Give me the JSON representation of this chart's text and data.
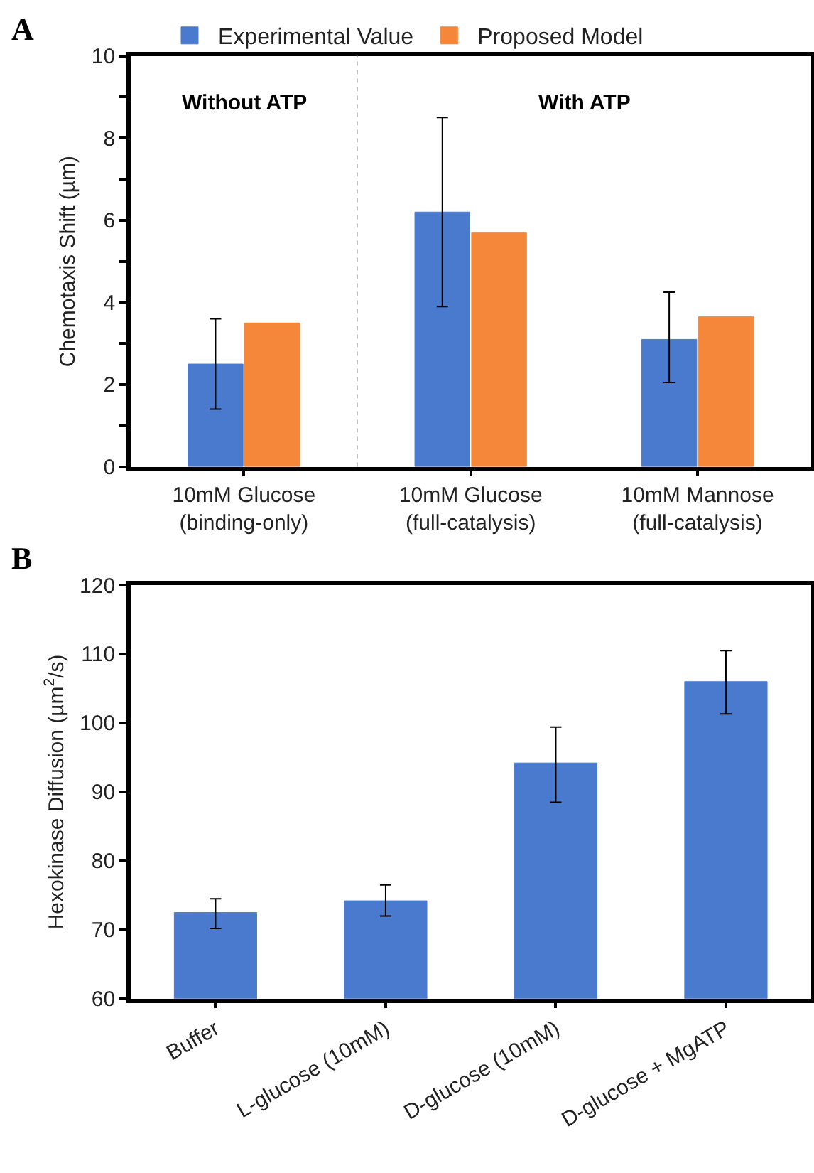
{
  "chart_data": [
    {
      "type": "bar",
      "title": "A",
      "ylabel": "Chemotaxis Shift (µm)",
      "categories": [
        "10mM Glucose (binding-only)",
        "10mM Glucose (full-catalysis)",
        "10mM Mannose (full-catalysis)"
      ],
      "series": [
        {
          "name": "Experimental Value",
          "color": "#4a7acd",
          "values": [
            2.5,
            6.2,
            3.1
          ],
          "errors": [
            [
              1.4,
              3.6
            ],
            [
              3.9,
              8.5
            ],
            [
              2.05,
              4.25
            ]
          ]
        },
        {
          "name": "Proposed Model",
          "color": "#f5873a",
          "values": [
            3.5,
            5.7,
            3.65
          ]
        }
      ],
      "ylim": [
        0,
        10
      ],
      "yticks": [
        0,
        {
          "value": 1,
          "label": null
        },
        2,
        {
          "value": 3,
          "label": null
        },
        4,
        {
          "value": 5,
          "label": null
        },
        6,
        {
          "value": 7,
          "label": null
        },
        8,
        {
          "value": 9,
          "label": null
        },
        10
      ],
      "annotations": [
        "Without ATP",
        "With ATP"
      ],
      "legend": "top"
    },
    {
      "type": "bar",
      "title": "B",
      "ylabel": "Hexokinase Diffusion (µm$^{2}$/s)",
      "categories": [
        "Buffer",
        "L-glucose (10mM)",
        "D-glucose (10mM)",
        "D-glucose + MgATP"
      ],
      "series": [
        {
          "color": "#4a7acd",
          "values": [
            72.5,
            74.2,
            94.2,
            106.0
          ],
          "errors": [
            [
              70.2,
              74.5
            ],
            [
              72.0,
              76.5
            ],
            [
              88.5,
              99.4
            ],
            [
              101.3,
              110.5
            ]
          ]
        }
      ],
      "ylim": [
        60,
        120
      ],
      "yticks": [
        60,
        70,
        80,
        90,
        100,
        110,
        120
      ],
      "legend": false
    }
  ]
}
